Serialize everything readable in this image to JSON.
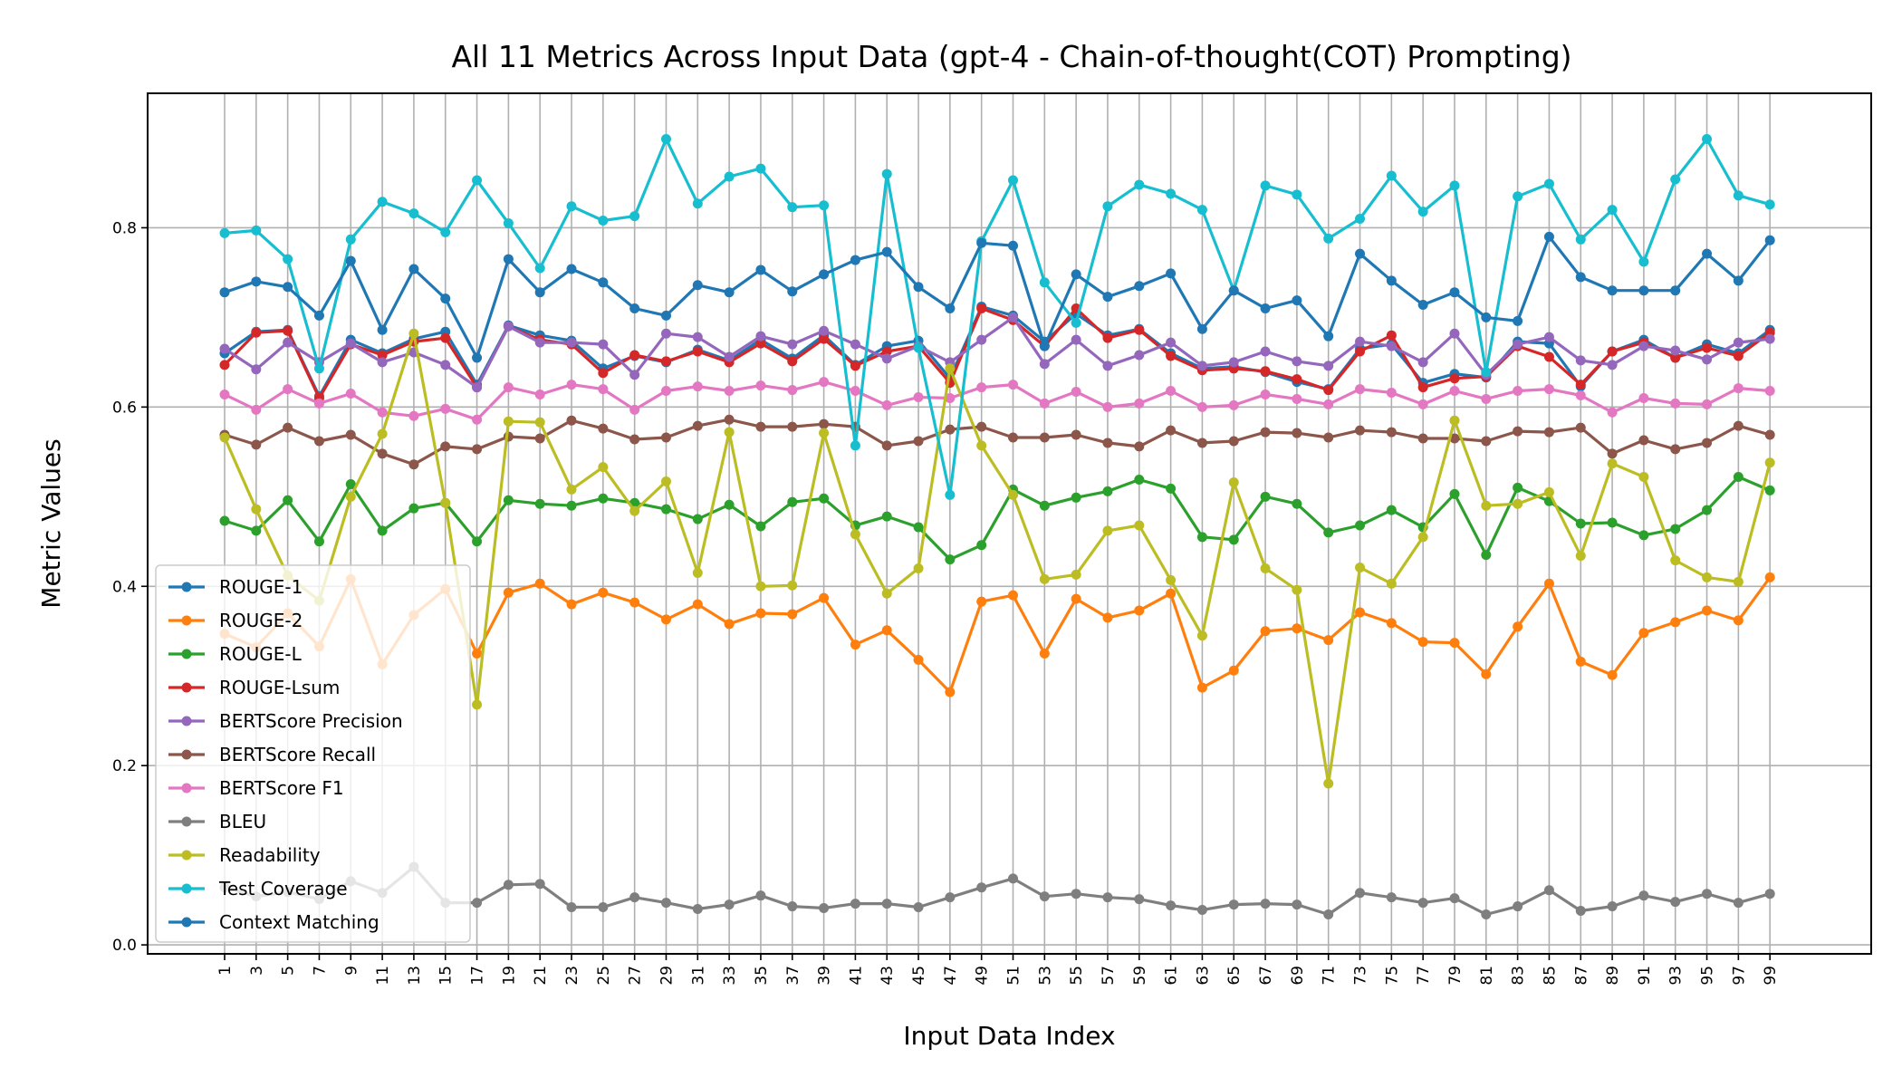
{
  "chart_data": {
    "type": "line",
    "title": "All 11 Metrics Across Input Data (gpt-4 - Chain-of-thought(COT) Prompting)",
    "xlabel": "Input Data Index",
    "ylabel": "Metric Values",
    "x": [
      1,
      3,
      5,
      7,
      9,
      11,
      13,
      15,
      17,
      19,
      21,
      23,
      25,
      27,
      29,
      31,
      33,
      35,
      37,
      39,
      41,
      43,
      45,
      47,
      49,
      51,
      53,
      55,
      57,
      59,
      61,
      63,
      65,
      67,
      69,
      71,
      73,
      75,
      77,
      79,
      81,
      83,
      85,
      87,
      89,
      91,
      93,
      95,
      97,
      99
    ],
    "xticks": [
      "1",
      "3",
      "5",
      "7",
      "9",
      "11",
      "13",
      "15",
      "17",
      "19",
      "21",
      "23",
      "25",
      "27",
      "29",
      "31",
      "33",
      "35",
      "37",
      "39",
      "41",
      "43",
      "45",
      "47",
      "49",
      "51",
      "53",
      "55",
      "57",
      "59",
      "61",
      "63",
      "65",
      "67",
      "69",
      "71",
      "73",
      "75",
      "77",
      "79",
      "81",
      "83",
      "85",
      "87",
      "89",
      "91",
      "93",
      "95",
      "97",
      "99"
    ],
    "yticks": [
      "0.0",
      "0.2",
      "0.4",
      "0.6",
      "0.8"
    ],
    "ylim": [
      -0.01,
      0.95
    ],
    "grid": true,
    "legend_position": "lower-left",
    "series": [
      {
        "name": "ROUGE-1",
        "color": "#1f77b4",
        "values": [
          0.66,
          0.684,
          0.686,
          0.612,
          0.675,
          0.66,
          0.676,
          0.684,
          0.625,
          0.691,
          0.68,
          0.674,
          0.643,
          0.657,
          0.65,
          0.664,
          0.652,
          0.675,
          0.654,
          0.68,
          0.647,
          0.668,
          0.674,
          0.632,
          0.712,
          0.702,
          0.673,
          0.704,
          0.68,
          0.687,
          0.66,
          0.643,
          0.645,
          0.639,
          0.628,
          0.62,
          0.665,
          0.67,
          0.627,
          0.637,
          0.633,
          0.673,
          0.671,
          0.623,
          0.662,
          0.675,
          0.655,
          0.67,
          0.66,
          0.686
        ]
      },
      {
        "name": "ROUGE-2",
        "color": "#ff7f0e",
        "values": [
          0.347,
          0.332,
          0.37,
          0.333,
          0.408,
          0.313,
          0.368,
          0.397,
          0.325,
          0.393,
          0.403,
          0.38,
          0.393,
          0.382,
          0.363,
          0.38,
          0.358,
          0.37,
          0.369,
          0.387,
          0.335,
          0.351,
          0.318,
          0.282,
          0.383,
          0.39,
          0.325,
          0.386,
          0.365,
          0.373,
          0.392,
          0.287,
          0.306,
          0.35,
          0.353,
          0.34,
          0.371,
          0.359,
          0.338,
          0.337,
          0.302,
          0.355,
          0.403,
          0.316,
          0.301,
          0.348,
          0.36,
          0.373,
          0.362,
          0.41
        ]
      },
      {
        "name": "ROUGE-L",
        "color": "#2ca02c",
        "values": [
          0.473,
          0.462,
          0.496,
          0.45,
          0.514,
          0.462,
          0.487,
          0.493,
          0.45,
          0.496,
          0.492,
          0.49,
          0.498,
          0.493,
          0.486,
          0.475,
          0.491,
          0.467,
          0.494,
          0.498,
          0.468,
          0.478,
          0.466,
          0.43,
          0.446,
          0.508,
          0.49,
          0.499,
          0.506,
          0.519,
          0.509,
          0.455,
          0.452,
          0.5,
          0.492,
          0.46,
          0.468,
          0.485,
          0.466,
          0.503,
          0.435,
          0.51,
          0.495,
          0.47,
          0.471,
          0.457,
          0.464,
          0.485,
          0.522,
          0.507
        ]
      },
      {
        "name": "ROUGE-Lsum",
        "color": "#d62728",
        "values": [
          0.647,
          0.683,
          0.685,
          0.61,
          0.67,
          0.658,
          0.673,
          0.677,
          0.622,
          0.69,
          0.675,
          0.67,
          0.638,
          0.658,
          0.651,
          0.662,
          0.65,
          0.671,
          0.651,
          0.676,
          0.646,
          0.662,
          0.668,
          0.627,
          0.71,
          0.697,
          0.668,
          0.71,
          0.677,
          0.686,
          0.657,
          0.641,
          0.643,
          0.64,
          0.631,
          0.619,
          0.662,
          0.68,
          0.622,
          0.632,
          0.634,
          0.668,
          0.656,
          0.625,
          0.662,
          0.672,
          0.655,
          0.666,
          0.657,
          0.683
        ]
      },
      {
        "name": "BERTScore Precision",
        "color": "#9467bd",
        "values": [
          0.665,
          0.642,
          0.672,
          0.65,
          0.671,
          0.65,
          0.661,
          0.647,
          0.622,
          0.69,
          0.672,
          0.672,
          0.67,
          0.636,
          0.682,
          0.678,
          0.656,
          0.679,
          0.67,
          0.685,
          0.67,
          0.654,
          0.668,
          0.65,
          0.675,
          0.7,
          0.648,
          0.675,
          0.646,
          0.658,
          0.672,
          0.646,
          0.65,
          0.662,
          0.651,
          0.646,
          0.673,
          0.668,
          0.65,
          0.682,
          0.636,
          0.67,
          0.678,
          0.652,
          0.647,
          0.668,
          0.663,
          0.653,
          0.672,
          0.676
        ]
      },
      {
        "name": "BERTScore Recall",
        "color": "#8c564b",
        "values": [
          0.569,
          0.558,
          0.577,
          0.562,
          0.569,
          0.548,
          0.536,
          0.556,
          0.553,
          0.567,
          0.565,
          0.585,
          0.576,
          0.564,
          0.566,
          0.579,
          0.586,
          0.578,
          0.578,
          0.581,
          0.578,
          0.557,
          0.562,
          0.575,
          0.578,
          0.566,
          0.566,
          0.569,
          0.56,
          0.556,
          0.574,
          0.56,
          0.562,
          0.572,
          0.571,
          0.566,
          0.574,
          0.572,
          0.565,
          0.565,
          0.562,
          0.573,
          0.572,
          0.577,
          0.548,
          0.563,
          0.553,
          0.56,
          0.579,
          0.569
        ]
      },
      {
        "name": "BERTScore F1",
        "color": "#e377c2",
        "values": [
          0.614,
          0.597,
          0.62,
          0.604,
          0.615,
          0.594,
          0.59,
          0.598,
          0.586,
          0.622,
          0.614,
          0.625,
          0.62,
          0.597,
          0.618,
          0.623,
          0.618,
          0.624,
          0.619,
          0.628,
          0.618,
          0.602,
          0.611,
          0.61,
          0.622,
          0.625,
          0.604,
          0.617,
          0.6,
          0.604,
          0.618,
          0.6,
          0.602,
          0.614,
          0.609,
          0.603,
          0.62,
          0.616,
          0.603,
          0.618,
          0.609,
          0.618,
          0.62,
          0.613,
          0.594,
          0.61,
          0.604,
          0.603,
          0.621,
          0.618
        ]
      },
      {
        "name": "BLEU",
        "color": "#7f7f7f",
        "values": [
          0.064,
          0.054,
          0.059,
          0.051,
          0.071,
          0.058,
          0.087,
          0.047,
          0.047,
          0.067,
          0.068,
          0.042,
          0.042,
          0.053,
          0.047,
          0.04,
          0.045,
          0.055,
          0.043,
          0.041,
          0.046,
          0.046,
          0.042,
          0.053,
          0.064,
          0.074,
          0.054,
          0.057,
          0.053,
          0.051,
          0.044,
          0.039,
          0.045,
          0.046,
          0.045,
          0.034,
          0.058,
          0.053,
          0.047,
          0.052,
          0.034,
          0.043,
          0.061,
          0.038,
          0.043,
          0.055,
          0.048,
          0.057,
          0.047,
          0.057
        ]
      },
      {
        "name": "Readability",
        "color": "#bcbd22",
        "values": [
          0.566,
          0.486,
          0.412,
          0.384,
          0.5,
          0.57,
          0.682,
          0.493,
          0.268,
          0.584,
          0.583,
          0.508,
          0.533,
          0.484,
          0.517,
          0.415,
          0.572,
          0.4,
          0.401,
          0.571,
          0.458,
          0.392,
          0.42,
          0.643,
          0.557,
          0.502,
          0.408,
          0.413,
          0.462,
          0.468,
          0.407,
          0.345,
          0.516,
          0.42,
          0.396,
          0.18,
          0.421,
          0.403,
          0.455,
          0.585,
          0.49,
          0.492,
          0.505,
          0.434,
          0.537,
          0.522,
          0.429,
          0.41,
          0.405,
          0.538
        ]
      },
      {
        "name": "Test Coverage",
        "color": "#17becf",
        "values": [
          0.794,
          0.797,
          0.765,
          0.643,
          0.787,
          0.829,
          0.816,
          0.795,
          0.853,
          0.805,
          0.755,
          0.824,
          0.808,
          0.813,
          0.899,
          0.827,
          0.857,
          0.866,
          0.823,
          0.825,
          0.557,
          0.86,
          0.666,
          0.502,
          0.785,
          0.853,
          0.739,
          0.694,
          0.824,
          0.848,
          0.838,
          0.82,
          0.73,
          0.847,
          0.837,
          0.788,
          0.81,
          0.858,
          0.818,
          0.847,
          0.639,
          0.835,
          0.849,
          0.787,
          0.82,
          0.762,
          0.854,
          0.899,
          0.836,
          0.826
        ]
      },
      {
        "name": "Context Matching",
        "color": "#1f77b4",
        "values": [
          0.728,
          0.74,
          0.734,
          0.702,
          0.763,
          0.686,
          0.754,
          0.721,
          0.655,
          0.765,
          0.728,
          0.754,
          0.739,
          0.71,
          0.702,
          0.736,
          0.728,
          0.753,
          0.729,
          0.748,
          0.764,
          0.773,
          0.734,
          0.71,
          0.783,
          0.78,
          0.668,
          0.748,
          0.723,
          0.735,
          0.749,
          0.687,
          0.73,
          0.71,
          0.719,
          0.679,
          0.771,
          0.741,
          0.714,
          0.728,
          0.7,
          0.696,
          0.79,
          0.745,
          0.73,
          0.73,
          0.73,
          0.771,
          0.741,
          0.786
        ]
      }
    ]
  }
}
